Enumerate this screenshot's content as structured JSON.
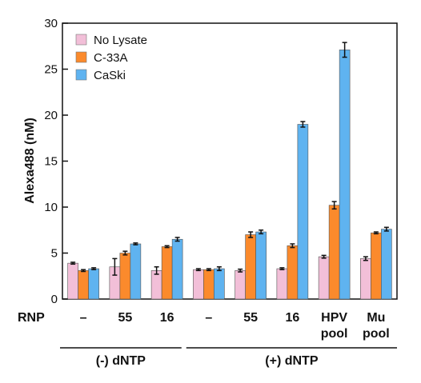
{
  "chart_data": {
    "type": "bar",
    "title": "",
    "xlabel": "",
    "ylabel": "Alexa488 (nM)",
    "ylim": [
      0,
      30
    ],
    "yticks": [
      0,
      5,
      10,
      15,
      20,
      25,
      30
    ],
    "grid": false,
    "legend_position": "top-left",
    "row_label": "RNP",
    "categories": [
      "–",
      "55",
      "16",
      "–",
      "55",
      "16",
      "HPV pool",
      "Mu pool"
    ],
    "category_lines": [
      [
        "–"
      ],
      [
        "55"
      ],
      [
        "16"
      ],
      [
        "–"
      ],
      [
        "55"
      ],
      [
        "16"
      ],
      [
        "HPV",
        "pool"
      ],
      [
        "Mu",
        "pool"
      ]
    ],
    "groups": [
      {
        "label": "(-) dNTP",
        "from": 0,
        "to": 2
      },
      {
        "label": "(+) dNTP",
        "from": 3,
        "to": 7
      }
    ],
    "series": [
      {
        "name": "No Lysate",
        "color": "#f2bfd8",
        "values": [
          3.9,
          3.5,
          3.1,
          3.2,
          3.1,
          3.3,
          4.6,
          4.4
        ],
        "errors": [
          0.1,
          0.9,
          0.4,
          0.1,
          0.15,
          0.1,
          0.15,
          0.2
        ]
      },
      {
        "name": "C-33A",
        "color": "#fb8a2c",
        "values": [
          3.1,
          5.0,
          5.7,
          3.2,
          7.0,
          5.8,
          10.2,
          7.2
        ],
        "errors": [
          0.1,
          0.2,
          0.1,
          0.1,
          0.3,
          0.2,
          0.4,
          0.1
        ]
      },
      {
        "name": "CaSki",
        "color": "#5fb3f0",
        "values": [
          3.3,
          6.0,
          6.5,
          3.3,
          7.3,
          19.0,
          27.1,
          7.6
        ],
        "errors": [
          0.1,
          0.1,
          0.2,
          0.2,
          0.2,
          0.3,
          0.8,
          0.2
        ]
      }
    ]
  }
}
